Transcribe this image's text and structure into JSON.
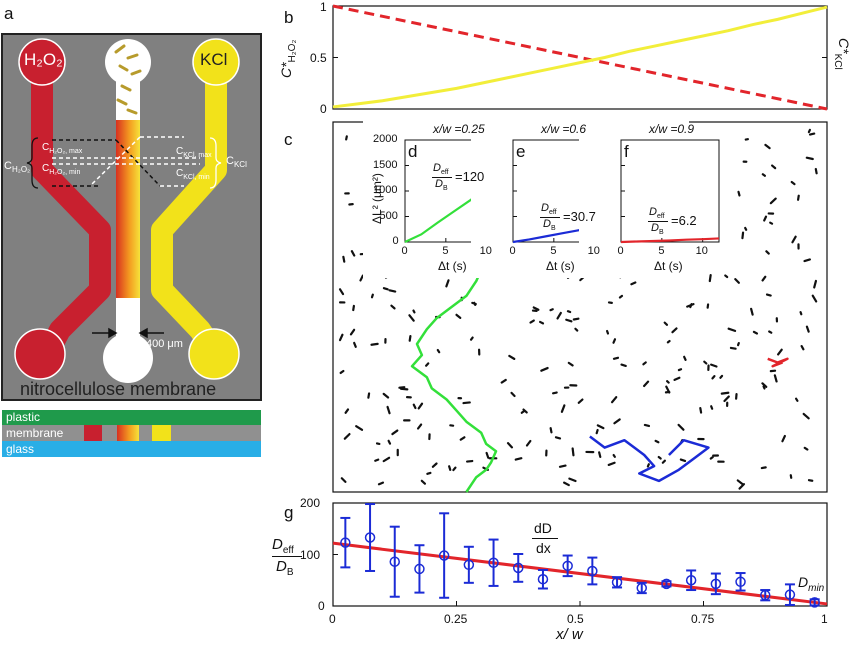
{
  "panels": {
    "a": {
      "label": "a",
      "inlet_left": "H₂O₂",
      "inlet_right": "KCl",
      "c_h2o2": "C",
      "c_h2o2_sub": "H₂O₂",
      "c_h2o2_max": "C",
      "c_h2o2_max_sub": "H₂O₂, max",
      "c_h2o2_min": "C",
      "c_h2o2_min_sub": "H₂O₂, min",
      "c_kcl": "C",
      "c_kcl_sub": "KCl",
      "c_kcl_max": "C",
      "c_kcl_max_sub": "KCl, max",
      "c_kcl_min": "C",
      "c_kcl_min_sub": "KCl, min",
      "scale": "400 μm",
      "membrane_caption": "nitrocellulose membrane",
      "layers": {
        "plastic": "plastic",
        "membrane": "membrane",
        "glass": "glass"
      },
      "colors": {
        "h2o2": "#c8202f",
        "kcl": "#f2e21a",
        "device_bg": "#808080",
        "plastic": "#1f9a4b",
        "glass": "#29aee6"
      }
    },
    "b": {
      "label": "b",
      "ylabel_left": "C*",
      "ylabel_left_sub": "H₂O₂",
      "ylabel_right": "C*",
      "ylabel_right_sub": "KCl",
      "yticks": [
        "1",
        "0.5",
        "0"
      ]
    },
    "c": {
      "label": "c"
    },
    "d": {
      "label": "d",
      "xw": "x/w =0.25",
      "ratio": "=120"
    },
    "e": {
      "label": "e",
      "xw": "x/w =0.6",
      "ratio": "=30.7"
    },
    "f": {
      "label": "f",
      "xw": "x/w =0.9",
      "ratio": "=6.2"
    },
    "insets": {
      "ylabel": "ΔL² (μm²)",
      "xlabel": "Δt (s)",
      "deff": "D",
      "deff_sub": "eff",
      "db": "D",
      "db_sub": "B",
      "yticks": [
        "2000",
        "1500",
        "1000",
        "500",
        "0"
      ],
      "xticks": [
        "0",
        "5",
        "10"
      ]
    },
    "g": {
      "label": "g",
      "ylabel_top": "D",
      "ylabel_top_sub": "eff",
      "ylabel_bottom": "D",
      "ylabel_bottom_sub": "B",
      "xlabel": "x/ w",
      "annotation_top": "dD",
      "annotation_bottom": "dx",
      "dmin": "D",
      "dmin_sub": "min",
      "yticks": [
        "200",
        "100",
        "0"
      ],
      "xticks": [
        "0",
        "0.25",
        "0.5",
        "0.75",
        "1"
      ]
    }
  },
  "chart_data": [
    {
      "panel": "b",
      "type": "line",
      "xlim": [
        0,
        1
      ],
      "ylim": [
        0,
        1
      ],
      "series": [
        {
          "color": "#e2252b",
          "style": "dashed",
          "x": [
            0,
            1
          ],
          "y": [
            1,
            0
          ]
        },
        {
          "color": "#f2ee3a",
          "style": "solid",
          "x": [
            0,
            0.05,
            0.1,
            0.15,
            0.2,
            0.25,
            0.3,
            0.35,
            0.4,
            0.45,
            0.5,
            0.55,
            0.6,
            0.65,
            0.7,
            0.75,
            0.8,
            0.85,
            0.9,
            0.95,
            1.0
          ],
          "y": [
            0.02,
            0.05,
            0.08,
            0.12,
            0.16,
            0.2,
            0.25,
            0.3,
            0.35,
            0.4,
            0.45,
            0.5,
            0.56,
            0.61,
            0.66,
            0.71,
            0.76,
            0.82,
            0.87,
            0.93,
            0.99
          ]
        }
      ]
    },
    {
      "panel": "d",
      "type": "line",
      "xlim": [
        0,
        12
      ],
      "ylim": [
        0,
        2000
      ],
      "series": [
        {
          "color": "#33e03a",
          "x": [
            0,
            2,
            4,
            6,
            8,
            10,
            12
          ],
          "y": [
            0,
            150,
            380,
            600,
            820,
            1050,
            1290
          ]
        }
      ]
    },
    {
      "panel": "e",
      "type": "line",
      "xlim": [
        0,
        12
      ],
      "ylim": [
        0,
        2000
      ],
      "series": [
        {
          "color": "#1b2bd6",
          "x": [
            0,
            2,
            4,
            6,
            8,
            10,
            12
          ],
          "y": [
            0,
            50,
            110,
            170,
            230,
            290,
            350
          ]
        }
      ]
    },
    {
      "panel": "f",
      "type": "line",
      "xlim": [
        0,
        12
      ],
      "ylim": [
        0,
        2000
      ],
      "series": [
        {
          "color": "#e2252b",
          "x": [
            0,
            2,
            4,
            6,
            8,
            10,
            12
          ],
          "y": [
            0,
            10,
            20,
            30,
            45,
            55,
            70
          ]
        }
      ]
    },
    {
      "panel": "g",
      "type": "scatter",
      "xlim": [
        0,
        1
      ],
      "ylim": [
        0,
        200
      ],
      "points": [
        {
          "x": 0.025,
          "y": 123,
          "err": 48
        },
        {
          "x": 0.075,
          "y": 133,
          "err": 65
        },
        {
          "x": 0.125,
          "y": 86,
          "err": 68
        },
        {
          "x": 0.175,
          "y": 72,
          "err": 46
        },
        {
          "x": 0.225,
          "y": 98,
          "err": 82
        },
        {
          "x": 0.275,
          "y": 80,
          "err": 35
        },
        {
          "x": 0.325,
          "y": 84,
          "err": 45
        },
        {
          "x": 0.375,
          "y": 74,
          "err": 27
        },
        {
          "x": 0.425,
          "y": 52,
          "err": 18
        },
        {
          "x": 0.475,
          "y": 78,
          "err": 20
        },
        {
          "x": 0.525,
          "y": 68,
          "err": 26
        },
        {
          "x": 0.575,
          "y": 46,
          "err": 10
        },
        {
          "x": 0.625,
          "y": 35,
          "err": 10
        },
        {
          "x": 0.675,
          "y": 43,
          "err": 5
        },
        {
          "x": 0.725,
          "y": 50,
          "err": 19
        },
        {
          "x": 0.775,
          "y": 43,
          "err": 20
        },
        {
          "x": 0.825,
          "y": 47,
          "err": 17
        },
        {
          "x": 0.875,
          "y": 21,
          "err": 10
        },
        {
          "x": 0.925,
          "y": 22,
          "err": 20
        },
        {
          "x": 0.975,
          "y": 7,
          "err": 6
        }
      ],
      "fit": {
        "color": "#e2252b",
        "x": [
          0,
          1
        ],
        "y": [
          122,
          4
        ]
      }
    },
    {
      "panel": "c",
      "type": "line",
      "xlim": [
        0,
        1
      ],
      "ylim": [
        0,
        1
      ],
      "series": [
        {
          "color": "#33e03a",
          "x": [
            0.3,
            0.29,
            0.27,
            0.24,
            0.21,
            0.19,
            0.17,
            0.18,
            0.16,
            0.19,
            0.2,
            0.23,
            0.25,
            0.27,
            0.3,
            0.31,
            0.33,
            0.32,
            0.31,
            0.29,
            0.28,
            0.27
          ],
          "y": [
            0.6,
            0.57,
            0.53,
            0.5,
            0.47,
            0.44,
            0.4,
            0.37,
            0.34,
            0.31,
            0.28,
            0.25,
            0.22,
            0.19,
            0.16,
            0.13,
            0.11,
            0.08,
            0.06,
            0.04,
            0.02,
            0.0
          ]
        },
        {
          "color": "#1b2bd6",
          "x": [
            0.52,
            0.55,
            0.59,
            0.63,
            0.65,
            0.62,
            0.66,
            0.7,
            0.73,
            0.76,
            0.71,
            0.68
          ],
          "y": [
            0.15,
            0.12,
            0.14,
            0.1,
            0.07,
            0.05,
            0.03,
            0.06,
            0.09,
            0.12,
            0.14,
            0.1
          ]
        },
        {
          "color": "#e2252b",
          "x": [
            0.88,
            0.9,
            0.92,
            0.89,
            0.91
          ],
          "y": [
            0.36,
            0.35,
            0.36,
            0.34,
            0.35
          ]
        }
      ]
    }
  ]
}
